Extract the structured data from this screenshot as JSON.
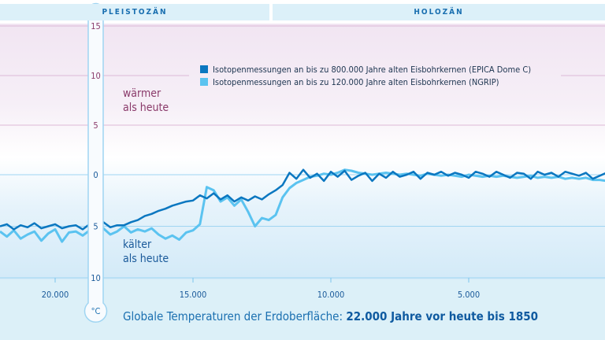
{
  "header": {
    "periods": [
      "PLEISTOZÄN",
      "HOLOZÄN"
    ]
  },
  "unit": "°C",
  "annotations": {
    "warmer": [
      "wärmer",
      "als heute"
    ],
    "colder": [
      "kälter",
      "als heute"
    ]
  },
  "title": {
    "regular": "Globale Temperaturen der Erdoberfläche:",
    "bold": "22.000 Jahre vor heute bis 1850"
  },
  "colors": {
    "epica": "#0b77c0",
    "ngrip": "#5bc3f0",
    "warm_label": "#8a3a6a",
    "cold_label": "#1a5a9a",
    "warm_bg": "#f1e5f2",
    "cold_bg": "#d8ecf9"
  },
  "chart_data": {
    "type": "line",
    "xlabel": "",
    "ylabel": "°C",
    "x_ticks": [
      {
        "value": 20000,
        "label": "20.000"
      },
      {
        "value": 15000,
        "label": "15.000"
      },
      {
        "value": 10000,
        "label": "10.000"
      },
      {
        "value": 5000,
        "label": "5.000"
      }
    ],
    "y_ticks": [
      {
        "value": 15,
        "label": "15"
      },
      {
        "value": 10,
        "label": "10"
      },
      {
        "value": 5,
        "label": "5"
      },
      {
        "value": 0,
        "label": "0"
      },
      {
        "value": -5,
        "label": "5"
      },
      {
        "value": -10,
        "label": "10"
      }
    ],
    "xlim": [
      22000,
      0
    ],
    "ylim": [
      -10,
      15
    ],
    "x_start": 22000,
    "x_step": -250,
    "legend_position": "top-right",
    "series": [
      {
        "name": "Isotopenmessungen an bis zu 800.000 Jahre alten Eisbohrkernen (EPICA Dome C)",
        "values": [
          -5.0,
          -4.8,
          -5.3,
          -4.9,
          -5.1,
          -4.7,
          -5.2,
          -5.0,
          -4.8,
          -5.2,
          -5.0,
          -4.9,
          -5.3,
          -4.8,
          -5.0,
          -4.6,
          -5.1,
          -4.9,
          -4.9,
          -4.6,
          -4.4,
          -4.0,
          -3.8,
          -3.5,
          -3.3,
          -3.0,
          -2.8,
          -2.6,
          -2.5,
          -2.0,
          -2.3,
          -1.8,
          -2.4,
          -2.0,
          -2.6,
          -2.2,
          -2.5,
          -2.1,
          -2.4,
          -1.9,
          -1.5,
          -1.0,
          0.2,
          -0.4,
          0.5,
          -0.3,
          0.1,
          -0.6,
          0.3,
          -0.2,
          0.4,
          -0.5,
          -0.1,
          0.2,
          -0.6,
          0.1,
          -0.3,
          0.3,
          -0.2,
          0.0,
          0.3,
          -0.4,
          0.2,
          0.0,
          0.3,
          -0.1,
          0.2,
          0.0,
          -0.3,
          0.3,
          0.1,
          -0.2,
          0.3,
          0.0,
          -0.3,
          0.2,
          0.1,
          -0.4,
          0.3,
          0.0,
          0.2,
          -0.2,
          0.3,
          0.1,
          -0.1,
          0.2,
          -0.4,
          -0.1,
          0.2
        ]
      },
      {
        "name": "Isotopenmessungen an bis zu 120.000 Jahre alten Eisbohrkernen (NGRIP)",
        "values": [
          -5.5,
          -6.0,
          -5.4,
          -6.2,
          -5.8,
          -5.5,
          -6.4,
          -5.7,
          -5.3,
          -6.5,
          -5.6,
          -5.5,
          -5.9,
          -5.4,
          -5.6,
          -5.2,
          -5.8,
          -5.5,
          -5.0,
          -5.6,
          -5.3,
          -5.5,
          -5.2,
          -5.8,
          -6.2,
          -5.9,
          -6.3,
          -5.6,
          -5.4,
          -4.8,
          -1.2,
          -1.5,
          -2.6,
          -2.2,
          -3.0,
          -2.4,
          -3.6,
          -5.0,
          -4.2,
          -4.4,
          -3.9,
          -2.2,
          -1.3,
          -0.8,
          -0.5,
          -0.2,
          -0.1,
          0.1,
          0.0,
          0.2,
          0.5,
          0.4,
          0.2,
          0.1,
          0.0,
          0.1,
          0.2,
          0.1,
          0.0,
          0.1,
          0.0,
          -0.1,
          0.1,
          0.0,
          -0.1,
          0.0,
          -0.1,
          -0.2,
          0.0,
          -0.1,
          -0.2,
          -0.1,
          -0.2,
          -0.1,
          -0.2,
          -0.3,
          -0.2,
          -0.1,
          -0.3,
          -0.2,
          -0.3,
          -0.2,
          -0.4,
          -0.3,
          -0.4,
          -0.3,
          -0.5,
          -0.5,
          -0.6
        ]
      }
    ]
  }
}
